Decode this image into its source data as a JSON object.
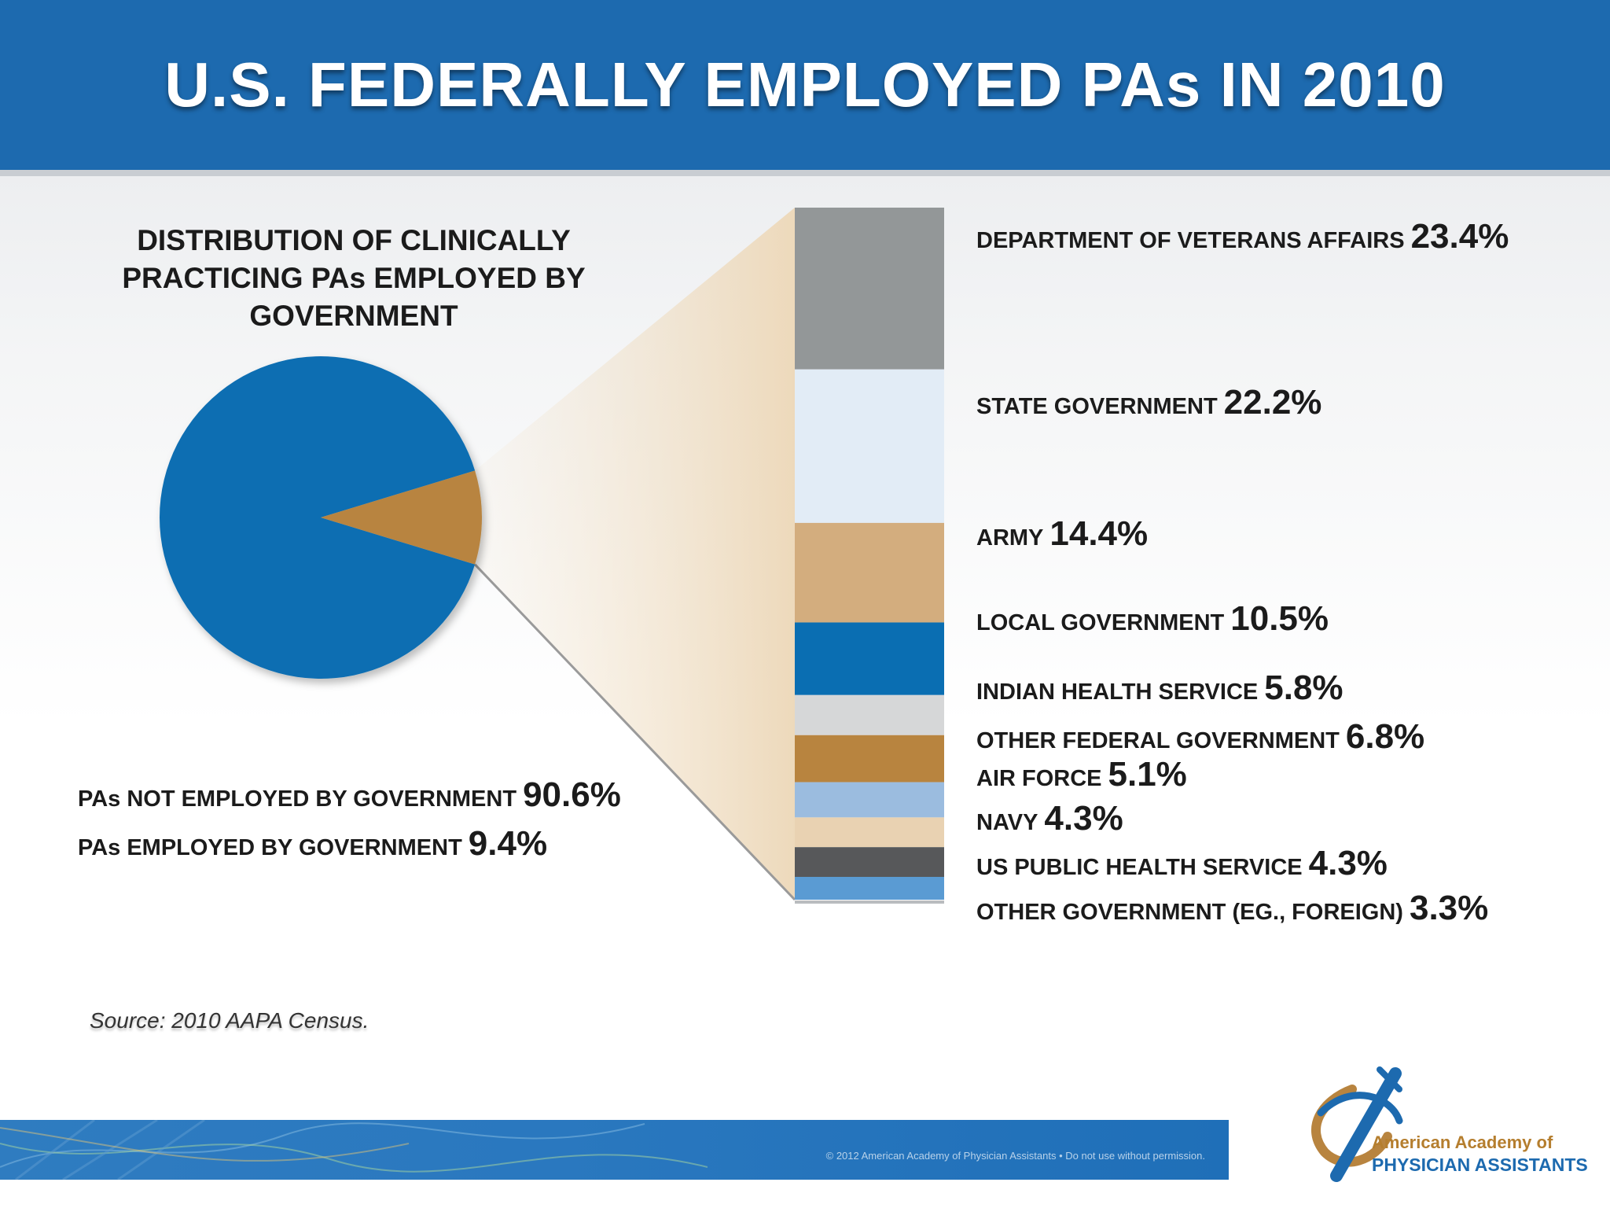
{
  "header": {
    "title": "U.S. FEDERALLY EMPLOYED PAs IN 2010"
  },
  "chart_data": [
    {
      "type": "pie",
      "title": "DISTRIBUTION OF CLINICALLY PRACTICING PAs EMPLOYED BY GOVERNMENT",
      "slices": [
        {
          "label": "PAs NOT EMPLOYED BY GOVERNMENT",
          "value": 90.6,
          "display": "90.6%",
          "color": "#0a6eb2"
        },
        {
          "label": "PAs EMPLOYED BY GOVERNMENT",
          "value": 9.4,
          "display": "9.4%",
          "color": "#b8843f"
        }
      ]
    },
    {
      "type": "bar",
      "stacked": true,
      "orientation": "vertical",
      "segments": [
        {
          "label": "DEPARTMENT OF VETERANS AFFAIRS",
          "value": 23.4,
          "display": "23.4%",
          "color": "#939798"
        },
        {
          "label": "STATE GOVERNMENT",
          "value": 22.2,
          "display": "22.2%",
          "color": "#e2ecf6"
        },
        {
          "label": "ARMY",
          "value": 14.4,
          "display": "14.4%",
          "color": "#d3ad7e"
        },
        {
          "label": "LOCAL GOVERNMENT",
          "value": 10.5,
          "display": "10.5%",
          "color": "#0a6eb2"
        },
        {
          "label": "INDIAN HEALTH SERVICE",
          "value": 5.8,
          "display": "5.8%",
          "color": "#d6d7d8"
        },
        {
          "label": "OTHER FEDERAL GOVERNMENT",
          "value": 6.8,
          "display": "6.8%",
          "color": "#b8843f"
        },
        {
          "label": "AIR FORCE",
          "value": 5.1,
          "display": "5.1%",
          "color": "#9bbcdf"
        },
        {
          "label": "NAVY",
          "value": 4.3,
          "display": "4.3%",
          "color": "#e9d2b2"
        },
        {
          "label": "US PUBLIC HEALTH SERVICE",
          "value": 4.3,
          "display": "4.3%",
          "color": "#57585a"
        },
        {
          "label": "OTHER GOVERNMENT (EG., FOREIGN)",
          "value": 3.3,
          "display": "3.3%",
          "color": "#5a9bd3"
        }
      ]
    }
  ],
  "source": "Source: 2010 AAPA Census.",
  "footer": {
    "copyright": "© 2012 American Academy of Physician Assistants • Do not use without permission.",
    "logo_line1": "American Academy of",
    "logo_line2": "PHYSICIAN ASSISTANTS"
  }
}
